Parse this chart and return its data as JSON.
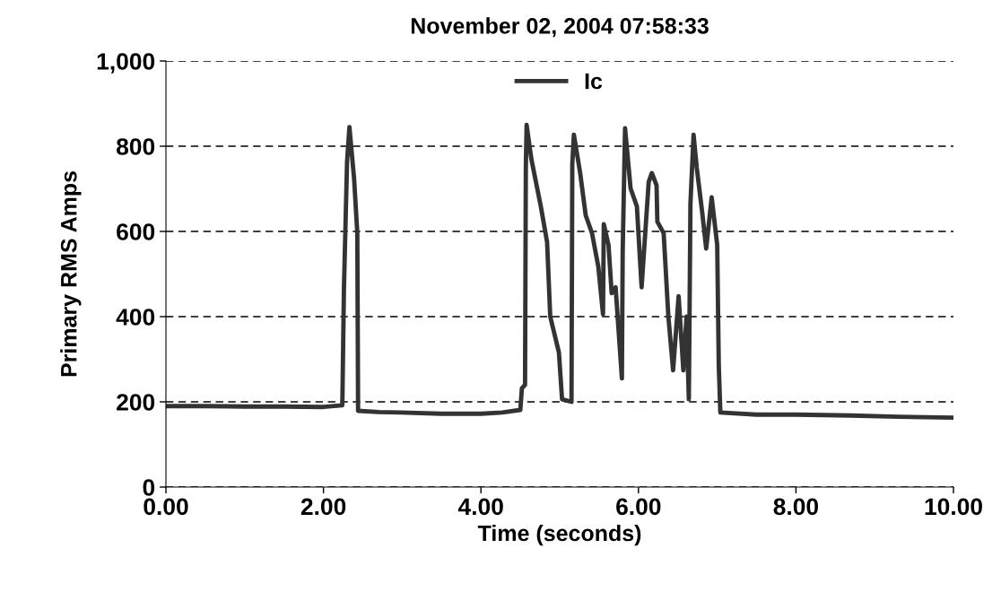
{
  "chart_data": {
    "type": "line",
    "title": "November 02, 2004 07:58:33",
    "xlabel": "Time (seconds)",
    "ylabel": "Primary RMS Amps",
    "series": [
      {
        "name": "Ic",
        "color": "#333333",
        "x": [
          0.0,
          0.5,
          1.0,
          1.5,
          2.0,
          2.24,
          2.26,
          2.3,
          2.33,
          2.39,
          2.43,
          2.44,
          2.7,
          2.98,
          3.5,
          4.0,
          4.27,
          4.5,
          4.52,
          4.56,
          4.57,
          4.58,
          4.64,
          4.76,
          4.84,
          4.88,
          4.99,
          5.03,
          5.15,
          5.16,
          5.18,
          5.26,
          5.33,
          5.41,
          5.49,
          5.55,
          5.56,
          5.62,
          5.66,
          5.71,
          5.79,
          5.8,
          5.83,
          5.9,
          5.98,
          6.04,
          6.13,
          6.17,
          6.23,
          6.24,
          6.32,
          6.38,
          6.44,
          6.51,
          6.57,
          6.61,
          6.64,
          6.66,
          6.7,
          6.74,
          6.81,
          6.86,
          6.93,
          7.0,
          7.02,
          7.04,
          7.5,
          8.0,
          8.7,
          9.3,
          10.0
        ],
        "values": [
          190,
          190,
          189,
          189,
          188,
          192,
          463,
          764,
          845,
          722,
          596,
          179,
          176,
          175,
          172,
          172,
          175,
          181,
          232,
          240,
          750,
          850,
          770,
          659,
          575,
          400,
          316,
          206,
          200,
          758,
          827,
          737,
          638,
          596,
          518,
          406,
          617,
          568,
          455,
          469,
          255,
          554,
          842,
          701,
          659,
          469,
          716,
          737,
          708,
          623,
          596,
          400,
          274,
          448,
          274,
          400,
          206,
          665,
          827,
          750,
          644,
          560,
          680,
          568,
          286,
          175,
          170,
          170,
          168,
          165,
          163
        ]
      }
    ],
    "xlim": [
      0,
      10
    ],
    "xticks": [
      {
        "value": 0,
        "label": "0.00"
      },
      {
        "value": 2,
        "label": "2.00"
      },
      {
        "value": 4,
        "label": "4.00"
      },
      {
        "value": 6,
        "label": "6.00"
      },
      {
        "value": 8,
        "label": "8.00"
      },
      {
        "value": 10,
        "label": "10.00"
      }
    ],
    "ylim": [
      0,
      1000
    ],
    "yticks": [
      0,
      200,
      400,
      600,
      800,
      {
        "value": 1000,
        "label": "1,000"
      }
    ],
    "grid": "y",
    "legend": "top",
    "marker": "none",
    "line_style": "solid"
  }
}
